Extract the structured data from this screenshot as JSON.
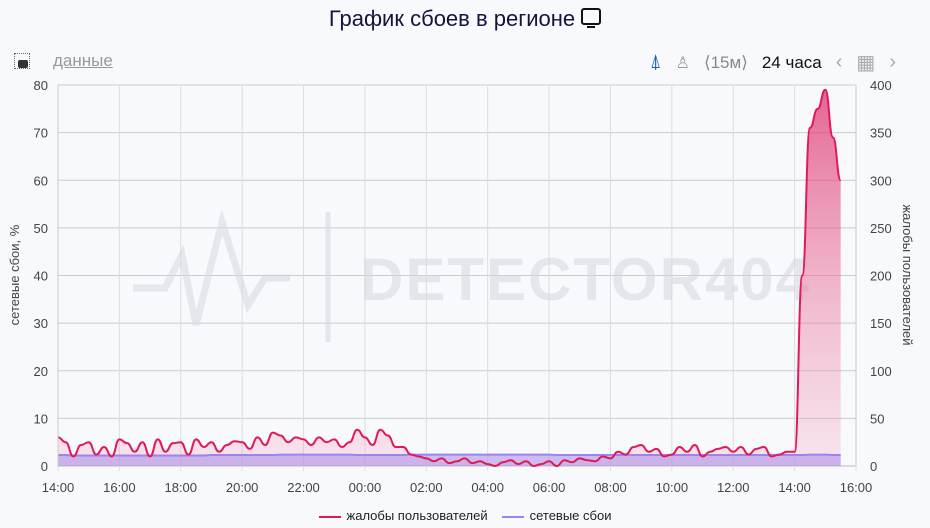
{
  "title": "График сбоев в регионе",
  "toolbar": {
    "data_link": "данные",
    "granularity": "⟨15м⟩",
    "range": "24 часа",
    "icons": [
      "camera-icon",
      "chart-type-icon",
      "user-icon",
      "chevron-left-icon",
      "calendar-icon",
      "chevron-right-icon"
    ]
  },
  "watermark": "DETECTOR404",
  "colors": {
    "complaints": "#e0195a",
    "network": "#9b84f0",
    "accent": "#1a5fb4"
  },
  "chart_data": {
    "type": "area",
    "title": "График сбоев в регионе",
    "xlabel": "",
    "ylabel_left": "сетевые сбои, %",
    "ylabel_right": "жалобы пользователей",
    "ylim_left": [
      0,
      80
    ],
    "ylim_right": [
      0,
      400
    ],
    "yticks_left": [
      "0",
      "10",
      "20",
      "30",
      "40",
      "50",
      "60",
      "70",
      "80"
    ],
    "yticks_right": [
      "0",
      "50",
      "100",
      "150",
      "200",
      "250",
      "300",
      "350",
      "400"
    ],
    "xticks": [
      "14:00",
      "16:00",
      "18:00",
      "20:00",
      "22:00",
      "00:00",
      "02:00",
      "04:00",
      "06:00",
      "08:00",
      "10:00",
      "12:00",
      "14:00",
      "16:00"
    ],
    "grid": true,
    "legend": "bottom",
    "x_start": "14:00",
    "interval_minutes": 15,
    "series": [
      {
        "name": "жалобы пользователей",
        "axis": "right",
        "values": [
          30,
          25,
          10,
          22,
          25,
          12,
          20,
          10,
          28,
          24,
          15,
          25,
          10,
          28,
          15,
          24,
          25,
          12,
          28,
          20,
          25,
          15,
          22,
          26,
          25,
          18,
          30,
          22,
          35,
          32,
          25,
          30,
          28,
          22,
          30,
          25,
          28,
          20,
          25,
          38,
          30,
          22,
          38,
          32,
          20,
          20,
          12,
          10,
          8,
          5,
          8,
          3,
          5,
          8,
          3,
          5,
          2,
          0,
          4,
          6,
          2,
          5,
          0,
          2,
          5,
          0,
          6,
          4,
          8,
          6,
          5,
          10,
          8,
          15,
          12,
          20,
          22,
          15,
          18,
          10,
          12,
          20,
          15,
          22,
          10,
          15,
          18,
          20,
          15,
          20,
          12,
          18,
          20,
          10,
          12,
          15,
          15,
          200,
          355,
          375,
          395,
          345,
          300
        ]
      },
      {
        "name": "сетевые сбои",
        "axis": "left",
        "values": [
          2.3,
          2.3,
          2.2,
          2.2,
          2.2,
          2.2,
          2.2,
          2.2,
          2.2,
          2.2,
          2.2,
          2.2,
          2.2,
          2.2,
          2.2,
          2.2,
          2.2,
          2.2,
          2.2,
          2.2,
          2.3,
          2.3,
          2.3,
          2.3,
          2.3,
          2.3,
          2.3,
          2.3,
          2.3,
          2.4,
          2.4,
          2.4,
          2.4,
          2.4,
          2.4,
          2.4,
          2.4,
          2.4,
          2.4,
          2.3,
          2.3,
          2.3,
          2.3,
          2.3,
          2.3,
          2.3,
          2.4,
          2.4,
          2.4,
          2.4,
          2.4,
          2.4,
          2.4,
          2.4,
          2.4,
          2.4,
          2.4,
          2.4,
          2.4,
          2.4,
          2.4,
          2.4,
          2.4,
          2.4,
          2.4,
          2.3,
          2.3,
          2.3,
          2.3,
          2.3,
          2.3,
          2.3,
          2.3,
          2.3,
          2.3,
          2.3,
          2.3,
          2.3,
          2.3,
          2.3,
          2.3,
          2.3,
          2.3,
          2.3,
          2.3,
          2.3,
          2.3,
          2.3,
          2.3,
          2.3,
          2.3,
          2.3,
          2.3,
          2.3,
          2.3,
          2.3,
          2.3,
          2.3,
          2.4,
          2.4,
          2.4,
          2.3,
          2.3
        ]
      }
    ]
  }
}
